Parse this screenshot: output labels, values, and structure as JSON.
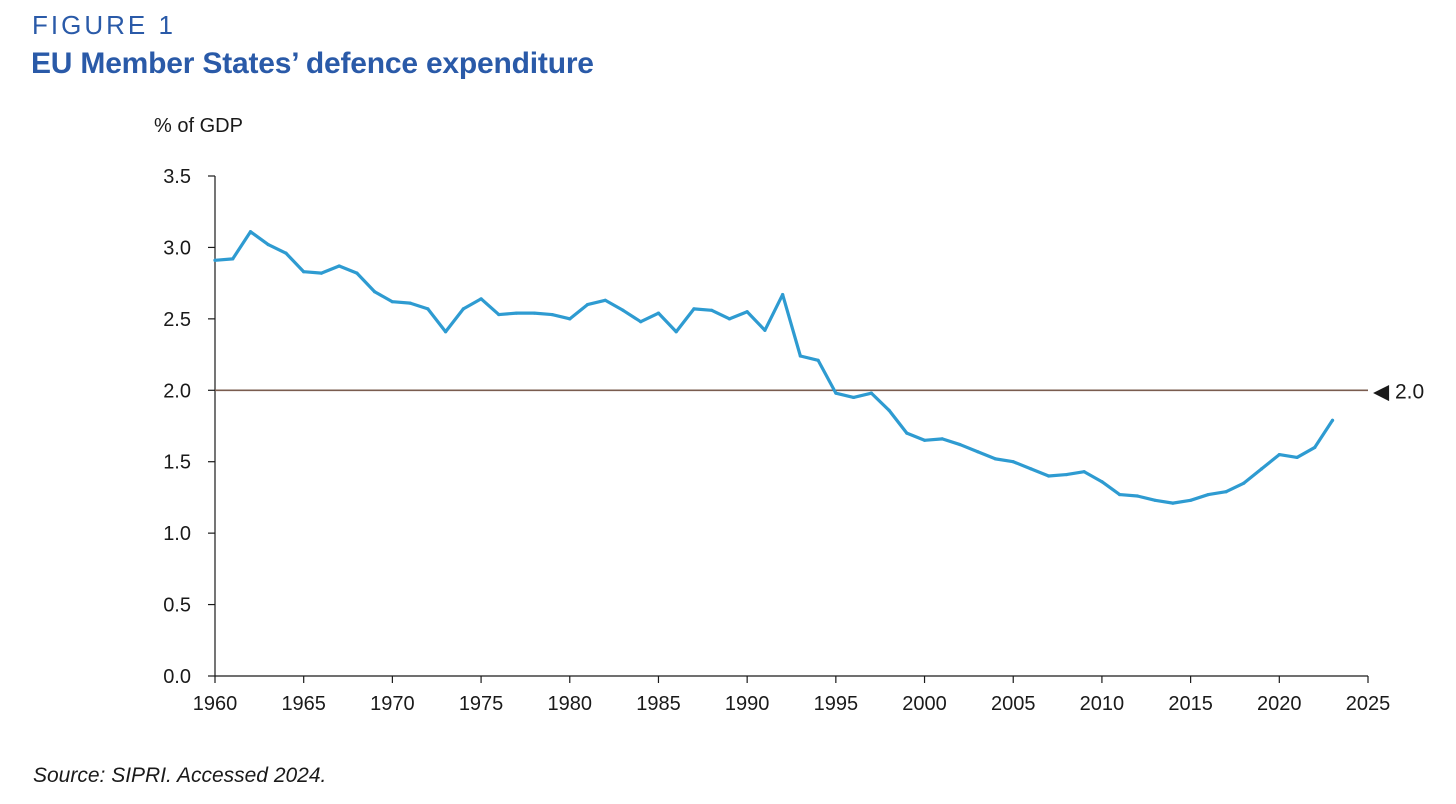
{
  "figure_label": "FIGURE 1",
  "title": "EU Member States’ defence expenditure",
  "source": "Source: SIPRI. Accessed 2024.",
  "colors": {
    "title": "#2a5aa8",
    "series": "#2e9bd1",
    "reference_line": "#7a5c4f",
    "axis": "#1a1a1a"
  },
  "chart_data": {
    "type": "line",
    "title": "EU Member States’ defence expenditure",
    "ylabel": "% of GDP",
    "xlabel": "",
    "xlim": [
      1960,
      2025
    ],
    "ylim": [
      0,
      3.5
    ],
    "x_ticks": [
      1960,
      1965,
      1970,
      1975,
      1980,
      1985,
      1990,
      1995,
      2000,
      2005,
      2010,
      2015,
      2020,
      2025
    ],
    "y_ticks": [
      0.0,
      0.5,
      1.0,
      1.5,
      2.0,
      2.5,
      3.0,
      3.5
    ],
    "grid": false,
    "legend": "none",
    "reference_line": {
      "value": 2.0,
      "label": "◀ 2.0"
    },
    "series": [
      {
        "x": [
          1960,
          1961,
          1962,
          1963,
          1964,
          1965,
          1966,
          1967,
          1968,
          1969,
          1970,
          1971,
          1972,
          1973,
          1974,
          1975,
          1976,
          1977,
          1978,
          1979,
          1980,
          1981,
          1982,
          1983,
          1984,
          1985,
          1986,
          1987,
          1988,
          1989,
          1990,
          1991,
          1992,
          1993,
          1994,
          1995,
          1996,
          1997,
          1998,
          1999,
          2000,
          2001,
          2002,
          2003,
          2004,
          2005,
          2006,
          2007,
          2008,
          2009,
          2010,
          2011,
          2012,
          2013,
          2014,
          2015,
          2016,
          2017,
          2018,
          2019,
          2020,
          2021,
          2022,
          2023
        ],
        "values": [
          2.91,
          2.92,
          3.11,
          3.02,
          2.96,
          2.83,
          2.82,
          2.87,
          2.82,
          2.69,
          2.62,
          2.61,
          2.57,
          2.41,
          2.57,
          2.64,
          2.53,
          2.54,
          2.54,
          2.53,
          2.5,
          2.6,
          2.63,
          2.56,
          2.48,
          2.54,
          2.41,
          2.57,
          2.56,
          2.5,
          2.55,
          2.42,
          2.67,
          2.24,
          2.21,
          1.98,
          1.95,
          1.98,
          1.86,
          1.7,
          1.65,
          1.66,
          1.62,
          1.57,
          1.52,
          1.5,
          1.45,
          1.4,
          1.41,
          1.43,
          1.36,
          1.27,
          1.26,
          1.23,
          1.21,
          1.23,
          1.27,
          1.29,
          1.35,
          1.45,
          1.55,
          1.53,
          1.6,
          1.79
        ]
      }
    ]
  }
}
